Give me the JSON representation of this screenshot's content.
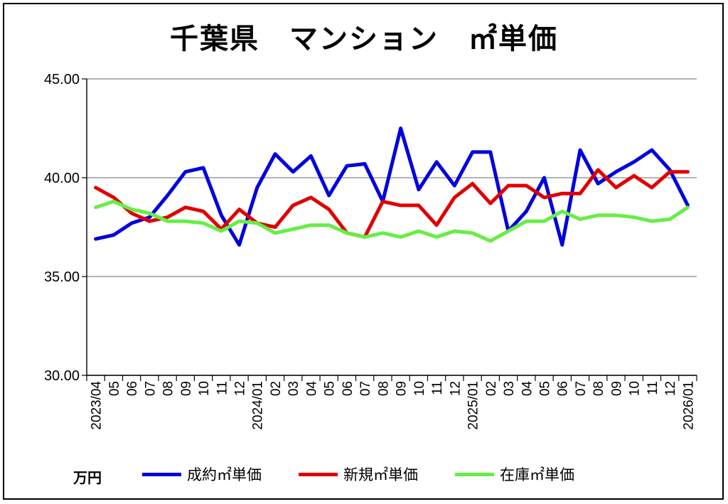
{
  "title": "千葉県　マンション　㎡単価",
  "unit_label": "万円",
  "colors": {
    "contract": "#0000dd",
    "new": "#e00000",
    "stock": "#66ee44",
    "grid": "#888888"
  },
  "chart_data": {
    "type": "line",
    "title": "千葉県　マンション　㎡単価",
    "ylim": [
      30,
      45
    ],
    "yticks": [
      "30.00",
      "35.00",
      "40.00",
      "45.00"
    ],
    "ytick_values": [
      30,
      35,
      40,
      45
    ],
    "grid": true,
    "legend_position": "bottom",
    "categories": [
      "2023/04",
      "05",
      "06",
      "07",
      "08",
      "09",
      "10",
      "11",
      "12",
      "2024/01",
      "02",
      "03",
      "04",
      "05",
      "06",
      "07",
      "08",
      "09",
      "10",
      "11",
      "12",
      "2025/01",
      "02",
      "03",
      "04",
      "05",
      "06",
      "07",
      "08",
      "09",
      "10",
      "11",
      "12",
      "2026/01"
    ],
    "series": [
      {
        "name": "成約㎡単価",
        "color": "#0000dd",
        "values": [
          36.9,
          37.1,
          37.7,
          38.0,
          39.1,
          40.3,
          40.5,
          38.1,
          36.6,
          39.5,
          41.2,
          40.3,
          41.1,
          39.1,
          40.6,
          40.7,
          38.8,
          42.5,
          39.4,
          40.8,
          39.6,
          41.3,
          41.3,
          37.3,
          38.3,
          40.0,
          36.6,
          41.4,
          39.7,
          40.3,
          40.8,
          41.4,
          40.4,
          38.6
        ]
      },
      {
        "name": "新規㎡単価",
        "color": "#e00000",
        "values": [
          39.5,
          39.0,
          38.2,
          37.8,
          38.0,
          38.5,
          38.3,
          37.4,
          38.4,
          37.7,
          37.5,
          38.6,
          39.0,
          38.4,
          37.2,
          37.0,
          38.8,
          38.6,
          38.6,
          37.6,
          39.0,
          39.7,
          38.7,
          39.6,
          39.6,
          39.0,
          39.2,
          39.2,
          40.4,
          39.5,
          40.1,
          39.5,
          40.3,
          40.3
        ]
      },
      {
        "name": "在庫㎡単価",
        "color": "#66ee44",
        "values": [
          38.5,
          38.8,
          38.4,
          38.2,
          37.8,
          37.8,
          37.7,
          37.3,
          37.8,
          37.7,
          37.2,
          37.4,
          37.6,
          37.6,
          37.2,
          37.0,
          37.2,
          37.0,
          37.3,
          37.0,
          37.3,
          37.2,
          36.8,
          37.3,
          37.8,
          37.8,
          38.3,
          37.9,
          38.1,
          38.1,
          38.0,
          37.8,
          37.9,
          38.5
        ]
      }
    ]
  }
}
